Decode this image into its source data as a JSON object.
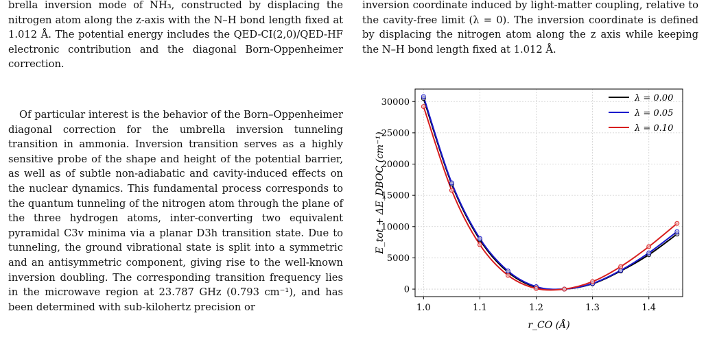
{
  "left_column": {
    "caption_lines": [
      "brella inversion mode of NH₃, constructed by displacing the nitrogen atom along the z-axis with the N–H bond length fixed at 1.012 Å. The potential energy includes the QED-CI(2,0)/QED-HF electronic contribution and the diagonal Born-Oppenheimer correction."
    ],
    "paragraph": "Of particular interest is the behavior of the Born–Oppenheimer diagonal correction for the umbrella inversion tunneling transition in ammonia. Inversion transition serves as a highly sensitive probe of the shape and height of the potential barrier, as well as of subtle non-adiabatic and cavity-induced effects on the nuclear dynamics. This fundamental process corresponds to the quantum tunneling of the nitrogen atom through the plane of the three hydrogen atoms, inter-converting two equivalent pyramidal C3v minima via a planar D3h transition state. Due to tunneling, the ground vibrational state is split into a symmetric and an antisymmetric component, giving rise to the well-known inversion doubling. The corresponding transition frequency lies in the microwave region at 23.787 GHz (0.793 cm⁻¹), and has been determined with sub-kilohertz precision or"
  },
  "right_column": {
    "caption_text": "inversion coordinate induced by light-matter coupling, relative to the cavity-free limit (λ = 0). The inversion coordinate is defined by displacing the nitrogen atom along the z axis while keeping the N–H bond length fixed at 1.012 Å."
  },
  "chart_data": {
    "type": "line",
    "xlabel": "r_CO (Å)",
    "ylabel": "E_tot + ΔE_DBOC (cm⁻¹)",
    "xlim": [
      0.985,
      1.46
    ],
    "ylim": [
      -1200,
      32000
    ],
    "xticks": [
      1.0,
      1.1,
      1.2,
      1.3,
      1.4
    ],
    "xtick_labels": [
      "1.0",
      "1.1",
      "1.2",
      "1.3",
      "1.4"
    ],
    "yticks": [
      0,
      5000,
      10000,
      15000,
      20000,
      25000,
      30000
    ],
    "ytick_labels": [
      "0",
      "5000",
      "10000",
      "15000",
      "20000",
      "25000",
      "30000"
    ],
    "grid": true,
    "legend_position": "top-right",
    "x": [
      1.0,
      1.05,
      1.1,
      1.15,
      1.2,
      1.25,
      1.3,
      1.35,
      1.4,
      1.45
    ],
    "series": [
      {
        "name": "λ = 0.00",
        "color": "#000000",
        "values": [
          30500,
          16800,
          7900,
          2700,
          300,
          0,
          850,
          2900,
          5500,
          8800
        ]
      },
      {
        "name": "λ = 0.05",
        "color": "#1a1acc",
        "values": [
          30800,
          17000,
          8100,
          2900,
          400,
          0,
          900,
          3000,
          5800,
          9200
        ]
      },
      {
        "name": "λ = 0.10",
        "color": "#d81e1e",
        "values": [
          29200,
          15800,
          7100,
          2200,
          100,
          0,
          1200,
          3600,
          6800,
          10500
        ]
      }
    ]
  }
}
